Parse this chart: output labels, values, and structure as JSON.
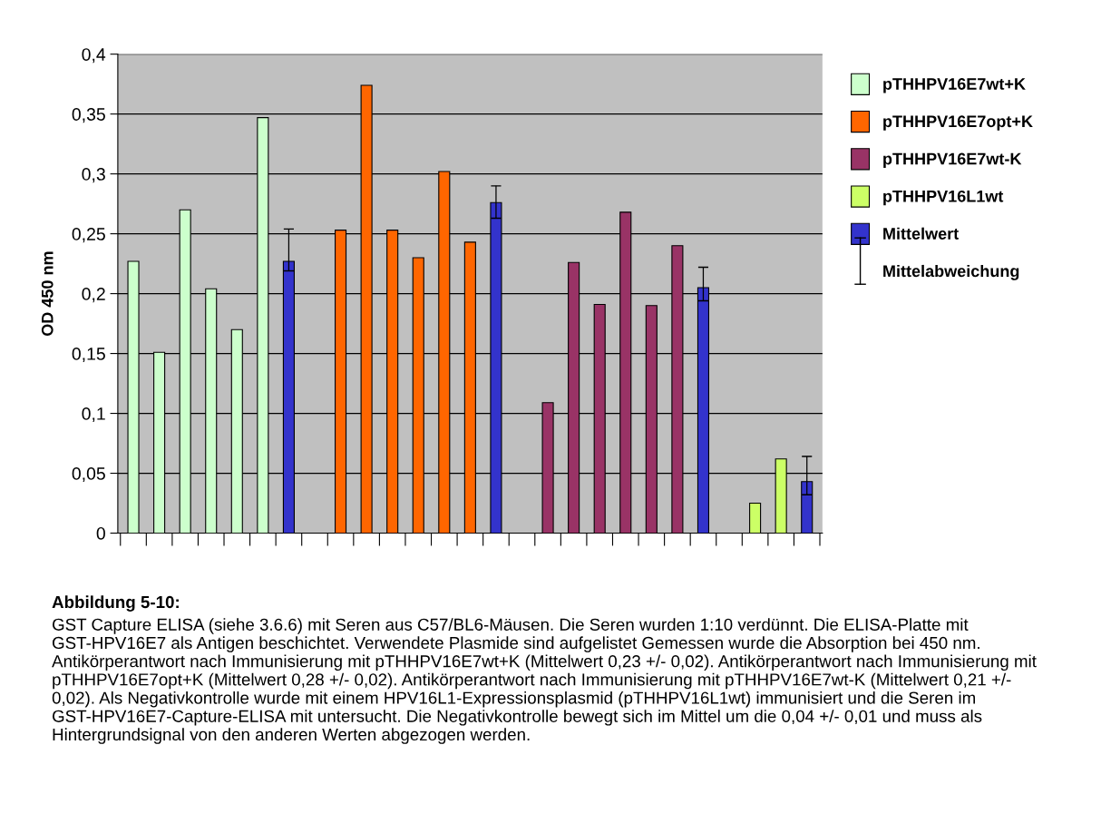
{
  "chart_data": {
    "type": "bar",
    "categories": [
      null,
      null,
      null,
      null,
      null,
      null,
      null,
      null,
      null,
      null,
      null,
      null,
      null,
      null,
      null,
      null,
      null,
      null,
      null,
      null,
      null,
      null,
      null,
      null,
      null,
      null,
      null
    ],
    "series": [
      {
        "name": "pTHHPV16E7wt+K",
        "color": "#ccffcc",
        "values": [
          0.227,
          0.151,
          0.27,
          0.204,
          0.17,
          0.347,
          null,
          null,
          null,
          null,
          null,
          null,
          null,
          null,
          null,
          null,
          null,
          null,
          null,
          null,
          null,
          null,
          null,
          null,
          null,
          null,
          null
        ]
      },
      {
        "name": "pTHHPV16E7opt+K",
        "color": "#ff6600",
        "values": [
          null,
          null,
          null,
          null,
          null,
          null,
          null,
          null,
          0.253,
          0.374,
          0.253,
          0.23,
          0.302,
          0.243,
          null,
          null,
          null,
          null,
          null,
          null,
          null,
          null,
          null,
          null,
          null,
          null,
          null
        ]
      },
      {
        "name": "pTHHPV16E7wt-K",
        "color": "#993366",
        "values": [
          null,
          null,
          null,
          null,
          null,
          null,
          null,
          null,
          null,
          null,
          null,
          null,
          null,
          null,
          null,
          null,
          0.109,
          0.226,
          0.191,
          0.268,
          0.19,
          0.24,
          null,
          null,
          null,
          null,
          null
        ]
      },
      {
        "name": "pTHHPV16L1wt",
        "color": "#ccff66",
        "values": [
          null,
          null,
          null,
          null,
          null,
          null,
          null,
          null,
          null,
          null,
          null,
          null,
          null,
          null,
          null,
          null,
          null,
          null,
          null,
          null,
          null,
          null,
          null,
          null,
          0.025,
          0.062,
          null
        ]
      },
      {
        "name": "Mittelwert",
        "color": "#3333cc",
        "values": [
          null,
          null,
          null,
          null,
          null,
          null,
          0.227,
          null,
          null,
          null,
          null,
          null,
          null,
          null,
          0.276,
          null,
          null,
          null,
          null,
          null,
          null,
          null,
          0.205,
          null,
          null,
          null,
          0.043
        ],
        "errors": [
          null,
          null,
          null,
          null,
          null,
          null,
          [
            0.219,
            0.254
          ],
          null,
          null,
          null,
          null,
          null,
          null,
          null,
          [
            0.263,
            0.29
          ],
          null,
          null,
          null,
          null,
          null,
          null,
          null,
          [
            0.194,
            0.222
          ],
          null,
          null,
          null,
          [
            0.032,
            0.064
          ]
        ]
      }
    ],
    "ylabel": "OD 450 nm",
    "ylim": [
      0,
      0.4
    ],
    "yticks": [
      0,
      {
        "value": 0.05,
        "label": "0,05"
      },
      {
        "value": 0.1,
        "label": "0,1"
      },
      {
        "value": 0.15,
        "label": "0,15"
      },
      {
        "value": 0.2,
        "label": "0,2"
      },
      {
        "value": 0.25,
        "label": "0,25"
      },
      {
        "value": 0.3,
        "label": "0,3"
      },
      {
        "value": 0.35,
        "label": "0,35"
      },
      {
        "value": 0.4,
        "label": "0,4"
      }
    ],
    "grid": "y",
    "legend": "right",
    "tick_labels": "y",
    "annotations": [
      "Mittelabweichung",
      "Abbildung 5-10:",
      "GST Capture ELISA (siehe 3.6.6) mit Seren aus C57/BL6-Mäusen. Die Seren wurden 1:10 verdünnt. Die ELISA-Platte mit GST-HPV16E7 als Antigen beschichtet. Verwendete Plasmide sind aufgelistet Gemessen wurde die Absorption bei 450 nm. Antikörperantwort nach Immunisierung mit pTHHPV16E7wt+K (Mittelwert 0,23 +/- 0,02). Antikörperantwort nach Immunisierung mit pTHHPV16E7opt+K (Mittelwert 0,28 +/- 0,02). Antikörperantwort nach Immunisierung mit pTHHPV16E7wt-K (Mittelwert 0,21 +/- 0,02). Als Negativkontrolle wurde mit einem HPV16L1-Expressionsplasmid (pTHHPV16L1wt) immunisiert und die Seren im GST-HPV16E7-Capture-ELISA mit untersucht. Die Negativkontrolle bewegt sich im Mittel um die 0,04 +/- 0,01 und muss als Hintergrundsignal von den anderen Werten abgezogen werden."
    ]
  }
}
